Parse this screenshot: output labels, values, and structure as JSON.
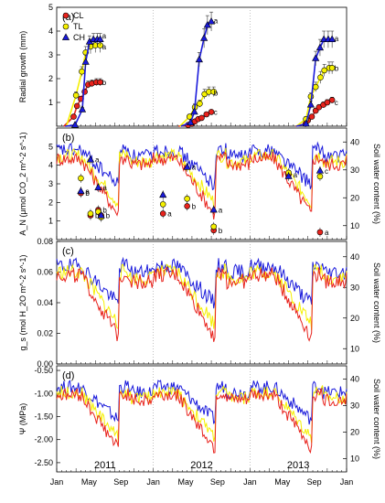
{
  "chart_data": [
    {
      "type": "line",
      "panel_label": "(a)",
      "ylabel": "Radial growth (mm)",
      "ylim": [
        0,
        5
      ],
      "yticks": [
        1,
        2,
        3,
        4,
        5
      ],
      "right_axis": false,
      "legend": {
        "position": "top-left",
        "entries": [
          "CL",
          "TL",
          "CH"
        ]
      },
      "series": [
        {
          "name": "CL",
          "color": "#e8231d",
          "marker": "circle",
          "x": [
            3.5,
            4.2,
            5.0,
            5.8,
            6.5,
            7.3,
            8.2,
            9.0,
            27.2,
            28.0,
            28.6,
            29.3,
            30.0,
            31.0,
            32.0,
            51.5,
            52.0,
            52.8,
            53.6,
            54.3,
            55.2,
            56.0,
            57.0
          ],
          "y": [
            0.4,
            0.85,
            1.15,
            1.45,
            1.75,
            1.8,
            1.85,
            1.85,
            0.05,
            0.1,
            0.2,
            0.3,
            0.35,
            0.5,
            0.6,
            0.1,
            0.25,
            0.4,
            0.65,
            0.8,
            0.9,
            1.0,
            1.1
          ],
          "err": [
            0,
            0,
            0.1,
            0.12,
            0.15,
            0.15,
            0.15,
            0.15,
            0,
            0,
            0,
            0,
            0,
            0,
            0,
            0,
            0,
            0,
            0.1,
            0.1,
            0.12,
            0.12,
            0.12
          ],
          "sig": [
            [
              "",
              0
            ],
            [
              "",
              0
            ]
          ],
          "endlabels": [
            {
              "x": 9.4,
              "y": 1.85,
              "t": "b"
            },
            {
              "x": 32.5,
              "y": 0.6,
              "t": "c"
            },
            {
              "x": 57.5,
              "y": 1.0,
              "t": "c"
            }
          ]
        },
        {
          "name": "TL",
          "color": "#f5f000",
          "marker": "circle",
          "x": [
            4.0,
            5.2,
            6.0,
            7.0,
            8.0,
            9.0,
            27.5,
            28.6,
            29.6,
            30.6,
            31.5,
            32.5,
            51.6,
            52.6,
            53.6,
            54.6,
            55.4,
            56.4,
            57.0
          ],
          "y": [
            1.3,
            2.3,
            3.1,
            3.35,
            3.4,
            3.4,
            0.4,
            0.8,
            0.95,
            1.35,
            1.45,
            1.45,
            0.3,
            1.25,
            1.65,
            2.05,
            2.35,
            2.45,
            2.45
          ],
          "err": [
            0.15,
            0.2,
            0.25,
            0.3,
            0.3,
            0.3,
            0.1,
            0.15,
            0.15,
            0.2,
            0.2,
            0.2,
            0.1,
            0.15,
            0.2,
            0.25,
            0.25,
            0.25,
            0.25
          ],
          "endlabels": [
            {
              "x": 9.4,
              "y": 3.35,
              "t": "a"
            },
            {
              "x": 32.5,
              "y": 1.4,
              "t": "b"
            },
            {
              "x": 57.5,
              "y": 2.45,
              "t": "b"
            }
          ]
        },
        {
          "name": "CH",
          "color": "#1a1adb",
          "marker": "triangle",
          "x": [
            3.8,
            5.3,
            6.0,
            6.8,
            7.6,
            8.4,
            9.0,
            27.7,
            28.5,
            29.5,
            30.5,
            31.2,
            32.0,
            51.6,
            52.6,
            53.6,
            54.5,
            55.3,
            56.2,
            57.0
          ],
          "y": [
            0.05,
            0.7,
            2.7,
            3.55,
            3.65,
            3.65,
            3.65,
            0.15,
            0.6,
            2.8,
            3.7,
            4.25,
            4.4,
            0.1,
            0.9,
            2.85,
            3.3,
            3.65,
            3.65,
            3.65
          ],
          "err": [
            0,
            0.1,
            0.3,
            0.25,
            0.25,
            0.25,
            0.25,
            0,
            0.1,
            0.3,
            0.4,
            0.4,
            0.4,
            0,
            0.15,
            0.3,
            0.35,
            0.35,
            0.35,
            0.35
          ],
          "endlabels": [
            {
              "x": 9.4,
              "y": 3.8,
              "t": "a"
            },
            {
              "x": 32.5,
              "y": 4.45,
              "t": "a"
            },
            {
              "x": 57.5,
              "y": 3.7,
              "t": "a"
            }
          ]
        }
      ]
    },
    {
      "type": "line",
      "panel_label": "(b)",
      "ylabel": "A_N (μmol CO_2 m^-2 s^-1)",
      "ylim": [
        0,
        6
      ],
      "yticks": [
        1,
        2,
        3,
        4,
        5
      ],
      "right_axis": true,
      "right_label": "Soil water content (%)",
      "right_ylim": [
        5,
        45
      ],
      "right_ticks": [
        10,
        20,
        30,
        40
      ],
      "points": [
        {
          "x": 7.0,
          "CL": 1.3,
          "TL": 1.4,
          "CH": 4.3,
          "lab": "b",
          "labCH": "a"
        },
        {
          "x": 8.6,
          "CL": 1.6,
          "TL": 1.5,
          "CH": 2.8,
          "lab": "b",
          "labCH": "a"
        },
        {
          "x": 9.2,
          "CL": 1.3,
          "TL": 1.2,
          "CH": 1.3,
          "lab": "b"
        },
        {
          "x": 5.0,
          "CL": 2.5,
          "TL": 3.3,
          "CH": 2.6,
          "lab": "b",
          "labCH": "a"
        },
        {
          "x": 22.0,
          "CL": 1.4,
          "TL": 1.9,
          "CH": 2.4,
          "lab": "a"
        },
        {
          "x": 27.0,
          "CL": 1.8,
          "TL": 2.2,
          "CH": 3.9,
          "lab": "b",
          "labCH": "a"
        },
        {
          "x": 32.5,
          "CL": 0.5,
          "TL": 0.7,
          "CH": 1.6,
          "lab": "b",
          "labCH": "a"
        },
        {
          "x": 48.0,
          "CL": 3.5,
          "TL": 3.6,
          "CH": 3.4,
          "lab": "a"
        },
        {
          "x": 54.5,
          "CL": 0.4,
          "TL": 3.4,
          "CH": 3.7,
          "lab": "a",
          "labCH": "c"
        }
      ]
    },
    {
      "type": "line",
      "panel_label": "(c)",
      "ylabel": "g_s (mol H_2O m^-2 s^-1)",
      "ylim": [
        0,
        0.08
      ],
      "yticks": [
        0.0,
        0.02,
        0.04,
        0.06,
        0.08
      ],
      "right_axis": true,
      "right_label": "Soil water content (%)",
      "right_ylim": [
        5,
        45
      ],
      "right_ticks": [
        10,
        20,
        30,
        40
      ]
    },
    {
      "type": "line",
      "panel_label": "(d)",
      "ylabel": "Ψ (MPa)",
      "ylim": [
        -2.7,
        -0.4
      ],
      "yticks": [
        -2.5,
        -2.0,
        -1.5,
        -1.0,
        -0.5
      ],
      "right_axis": true,
      "right_label": "Soil water content (%)",
      "right_ylim": [
        5,
        45
      ],
      "right_ticks": [
        10,
        20,
        30,
        40
      ]
    }
  ],
  "x_axis": {
    "tick_labels": [
      "Jan",
      "May",
      "Sep",
      "Jan",
      "May",
      "Sep",
      "Jan",
      "May",
      "Sep",
      "Jan"
    ],
    "year_labels": [
      "2011",
      "2012",
      "2013"
    ]
  }
}
